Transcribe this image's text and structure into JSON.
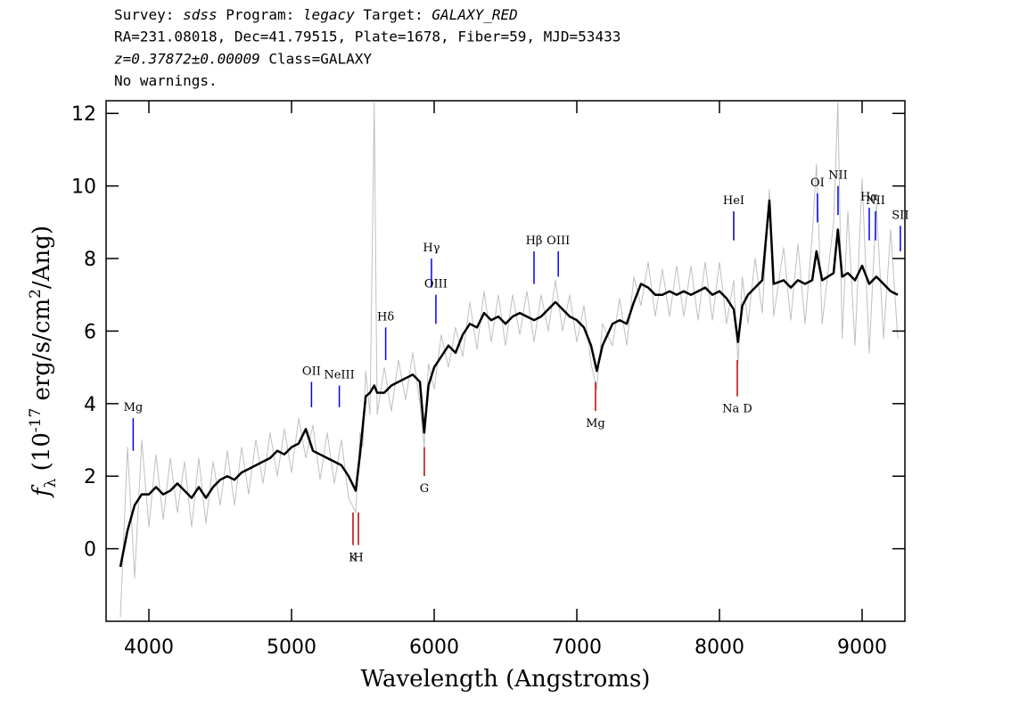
{
  "chart_data": {
    "type": "line",
    "header": [
      [
        {
          "text": "Survey: ",
          "italic": false
        },
        {
          "text": "sdss",
          "italic": true
        },
        {
          "text": " Program: ",
          "italic": false
        },
        {
          "text": "legacy",
          "italic": true
        },
        {
          "text": " Target: ",
          "italic": false
        },
        {
          "text": "GALAXY_RED",
          "italic": true
        }
      ],
      [
        {
          "text": "RA=231.08018, Dec=41.79515, Plate=1678, Fiber=59, MJD=53433",
          "italic": false
        }
      ],
      [
        {
          "text": "z=0.37872±0.00009",
          "italic": true
        },
        {
          "text": " Class=GALAXY",
          "italic": false
        }
      ],
      [
        {
          "text": "No warnings.",
          "italic": false
        }
      ]
    ],
    "xlabel": "Wavelength (Angstroms)",
    "ylabel_parts": [
      "f",
      "λ",
      " (10",
      "-17",
      " erg/s/cm",
      "2",
      "/Ang)"
    ],
    "xlim": [
      3700,
      9300
    ],
    "ylim": [
      -2,
      12.35
    ],
    "xticks": [
      4000,
      5000,
      6000,
      7000,
      8000,
      9000
    ],
    "yticks": [
      0,
      2,
      4,
      6,
      8,
      10,
      12
    ],
    "x": [
      3800,
      3850,
      3900,
      3950,
      4000,
      4050,
      4100,
      4150,
      4200,
      4250,
      4300,
      4350,
      4400,
      4450,
      4500,
      4550,
      4600,
      4650,
      4700,
      4750,
      4800,
      4850,
      4900,
      4950,
      5000,
      5050,
      5100,
      5150,
      5200,
      5250,
      5300,
      5350,
      5400,
      5450,
      5480,
      5500,
      5520,
      5550,
      5580,
      5600,
      5650,
      5700,
      5750,
      5800,
      5850,
      5900,
      5930,
      5960,
      6000,
      6050,
      6100,
      6150,
      6200,
      6250,
      6300,
      6350,
      6400,
      6450,
      6500,
      6550,
      6600,
      6650,
      6700,
      6750,
      6800,
      6850,
      6900,
      6950,
      7000,
      7050,
      7100,
      7140,
      7180,
      7250,
      7300,
      7350,
      7400,
      7450,
      7500,
      7550,
      7600,
      7650,
      7700,
      7750,
      7800,
      7850,
      7900,
      7950,
      8000,
      8050,
      8100,
      8130,
      8160,
      8200,
      8250,
      8300,
      8350,
      8380,
      8450,
      8500,
      8550,
      8600,
      8650,
      8680,
      8720,
      8800,
      8830,
      8860,
      8900,
      8950,
      9000,
      9050,
      9100,
      9150,
      9200,
      9250
    ],
    "series": [
      {
        "color": "#c0c0c0",
        "width": 1,
        "values": [
          -1.9,
          2.8,
          -0.8,
          3.0,
          0.6,
          2.6,
          0.8,
          2.5,
          1.0,
          2.4,
          0.6,
          2.5,
          0.7,
          2.4,
          1.2,
          2.7,
          1.2,
          2.8,
          1.5,
          3.0,
          1.8,
          3.2,
          2.0,
          3.3,
          2.1,
          3.6,
          2.5,
          3.4,
          1.9,
          3.2,
          1.8,
          3.0,
          1.4,
          1.0,
          3.2,
          2.8,
          4.9,
          3.7,
          12.3,
          3.7,
          5.0,
          3.8,
          5.2,
          4.1,
          5.4,
          4.0,
          2.8,
          5.1,
          4.4,
          5.9,
          5.0,
          6.1,
          5.3,
          6.8,
          5.5,
          7.1,
          5.7,
          7.0,
          5.6,
          7.0,
          5.9,
          7.1,
          5.7,
          7.0,
          6.0,
          7.4,
          6.0,
          7.0,
          5.7,
          6.7,
          5.1,
          4.4,
          6.2,
          5.6,
          6.9,
          5.6,
          7.5,
          6.7,
          7.9,
          6.4,
          7.7,
          6.4,
          7.8,
          6.4,
          7.8,
          6.3,
          7.9,
          6.3,
          7.9,
          6.2,
          7.4,
          5.1,
          7.5,
          6.2,
          8.0,
          6.5,
          9.9,
          6.4,
          8.3,
          6.3,
          8.4,
          6.2,
          8.6,
          10.6,
          6.2,
          9.0,
          12.3,
          5.8,
          9.3,
          5.6,
          10.2,
          5.4,
          9.5,
          5.8,
          8.8,
          5.8
        ]
      },
      {
        "color": "#000000",
        "width": 2.5,
        "values": [
          -0.5,
          0.5,
          1.2,
          1.5,
          1.5,
          1.7,
          1.5,
          1.6,
          1.8,
          1.6,
          1.4,
          1.7,
          1.4,
          1.7,
          1.9,
          2.0,
          1.9,
          2.1,
          2.2,
          2.3,
          2.4,
          2.5,
          2.7,
          2.6,
          2.8,
          2.9,
          3.3,
          2.7,
          2.6,
          2.5,
          2.4,
          2.3,
          2.0,
          1.6,
          2.6,
          3.4,
          4.2,
          4.3,
          4.5,
          4.3,
          4.3,
          4.5,
          4.6,
          4.7,
          4.8,
          4.6,
          3.2,
          4.5,
          5.0,
          5.3,
          5.6,
          5.4,
          5.9,
          6.2,
          6.1,
          6.5,
          6.3,
          6.4,
          6.2,
          6.4,
          6.5,
          6.4,
          6.3,
          6.4,
          6.6,
          6.8,
          6.6,
          6.4,
          6.3,
          6.1,
          5.6,
          4.9,
          5.6,
          6.2,
          6.3,
          6.2,
          6.8,
          7.3,
          7.2,
          7.0,
          7.0,
          7.1,
          7.0,
          7.1,
          7.0,
          7.1,
          7.2,
          7.0,
          7.1,
          6.9,
          6.6,
          5.7,
          6.7,
          7.0,
          7.2,
          7.4,
          9.6,
          7.3,
          7.4,
          7.2,
          7.4,
          7.3,
          7.4,
          8.2,
          7.4,
          7.6,
          8.8,
          7.5,
          7.6,
          7.4,
          7.8,
          7.3,
          7.5,
          7.3,
          7.1,
          7.0
        ]
      }
    ],
    "line_markers": [
      {
        "label": "Mg",
        "x": 3890,
        "y": [
          2.7,
          3.6
        ],
        "color": "#0000ff",
        "label_pos": "above"
      },
      {
        "label": "OII",
        "x": 5140,
        "y": [
          3.9,
          4.6
        ],
        "color": "#0000ff",
        "label_pos": "above"
      },
      {
        "label": "NeIII",
        "x": 5335,
        "y": [
          3.9,
          4.5
        ],
        "color": "#0000ff",
        "label_pos": "above"
      },
      {
        "label": "Hδ",
        "x": 5660,
        "y": [
          5.2,
          6.1
        ],
        "color": "#0000ff",
        "label_pos": "above"
      },
      {
        "label": "Hγ",
        "x": 5981,
        "y": [
          7.2,
          8.0
        ],
        "color": "#0000ff",
        "label_pos": "above"
      },
      {
        "label": "OIII",
        "x": 6012,
        "y": [
          6.2,
          7.0
        ],
        "color": "#0000ff",
        "label_pos": "above"
      },
      {
        "label": "Hβ",
        "x": 6700,
        "y": [
          7.3,
          8.2
        ],
        "color": "#0000ff",
        "label_pos": "above"
      },
      {
        "label": "OIII",
        "x": 6870,
        "y": [
          7.5,
          8.2
        ],
        "color": "#0000ff",
        "label_pos": "above"
      },
      {
        "label": "HeI",
        "x": 8100,
        "y": [
          8.5,
          9.3
        ],
        "color": "#000080",
        "label_pos": "above"
      },
      {
        "label": "OI",
        "x": 8687,
        "y": [
          9.0,
          9.8
        ],
        "color": "#0000ff",
        "label_pos": "above"
      },
      {
        "label": "NII",
        "x": 8831,
        "y": [
          9.2,
          10.0
        ],
        "color": "#0000ff",
        "label_pos": "above"
      },
      {
        "label": "Hα",
        "x": 9050,
        "y": [
          8.5,
          9.4
        ],
        "color": "#0000ff",
        "label_pos": "above"
      },
      {
        "label": "NII",
        "x": 9094,
        "y": [
          8.5,
          9.3
        ],
        "color": "#0000ff",
        "label_pos": "above"
      },
      {
        "label": "SII",
        "x": 9268,
        "y": [
          8.2,
          8.9
        ],
        "color": "#0000ff",
        "label_pos": "above"
      },
      {
        "label": "K",
        "x": 5431,
        "y": [
          0.1,
          1.0
        ],
        "color": "#c00000",
        "label_pos": "below"
      },
      {
        "label": "H",
        "x": 5469,
        "y": [
          0.1,
          1.0
        ],
        "color": "#c00000",
        "label_pos": "below"
      },
      {
        "label": "G",
        "x": 5931,
        "y": [
          2.0,
          2.8
        ],
        "color": "#c00000",
        "label_pos": "below"
      },
      {
        "label": "Mg",
        "x": 7131,
        "y": [
          3.8,
          4.6
        ],
        "color": "#c00000",
        "label_pos": "below"
      },
      {
        "label": "Na D",
        "x": 8125,
        "y": [
          4.2,
          5.2
        ],
        "color": "#c00000",
        "label_pos": "below"
      }
    ]
  }
}
